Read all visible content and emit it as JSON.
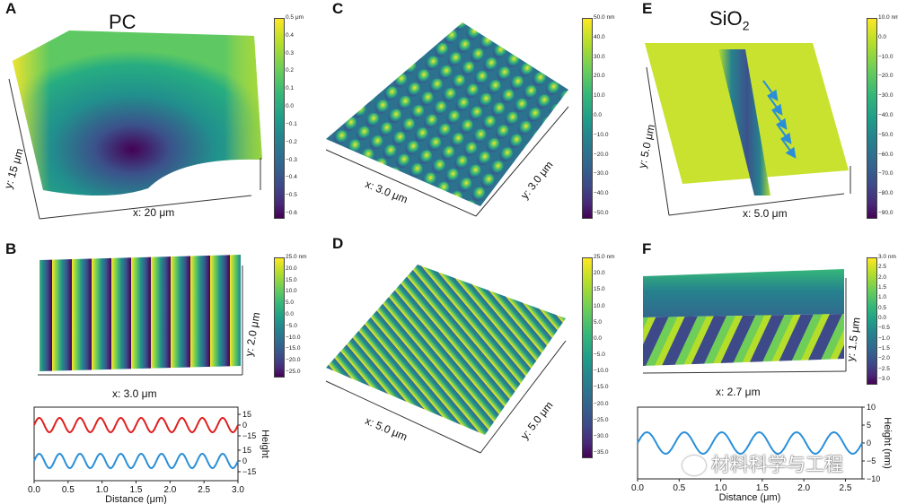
{
  "panels": {
    "A": {
      "letter": "A",
      "title": "PC",
      "x_label": "x: 20 μm",
      "y_label": "y: 15 μm",
      "cbar_ticks": [
        "0.5 μm",
        "0.4",
        "0.3",
        "0.2",
        "0.1",
        "0.0",
        "−0.1",
        "−0.2",
        "−0.3",
        "−0.4",
        "−0.5",
        "−0.6"
      ]
    },
    "B": {
      "letter": "B",
      "x_label": "x: 3.0 μm",
      "y_label": "y: 2.0 μm",
      "cbar_ticks": [
        "25.0 nm",
        "20.0",
        "15.0",
        "10.0",
        "5.0",
        "0.0",
        "−5.0",
        "−10.0",
        "−15.0",
        "−20.0",
        "−25.0"
      ]
    },
    "C": {
      "letter": "C",
      "x_label": "x: 3.0 μm",
      "y_label": "y: 3.0 μm",
      "cbar_ticks": [
        "50.0 nm",
        "40.0",
        "30.0",
        "20.0",
        "10.0",
        "0.0",
        "−10.0",
        "−20.0",
        "−30.0",
        "−40.0",
        "−50.0"
      ]
    },
    "D": {
      "letter": "D",
      "x_label": "x: 5.0 μm",
      "y_label": "y: 5.0 μm",
      "cbar_ticks": [
        "25.0 nm",
        "20.0",
        "15.0",
        "10.0",
        "5.0",
        "0.0",
        "−5.0",
        "−10.0",
        "−15.0",
        "−20.0",
        "−25.0",
        "−30.0",
        "−35.0"
      ]
    },
    "E": {
      "letter": "E",
      "title_main": "SiO",
      "title_sub": "2",
      "x_label": "x: 5.0 μm",
      "y_label": "y: 5.0 μm",
      "cbar_ticks": [
        "10.0 nm",
        "0.0",
        "−10.0",
        "−20.0",
        "−30.0",
        "−40.0",
        "−50.0",
        "−60.0",
        "−70.0",
        "−80.0",
        "−90.0"
      ]
    },
    "F": {
      "letter": "F",
      "x_label": "x: 2.7 μm",
      "y_label": "y: 1.5 μm",
      "cbar_ticks": [
        "3.0 nm",
        "2.5",
        "2.0",
        "1.5",
        "1.0",
        "0.5",
        "0.0",
        "−0.5",
        "−1.0",
        "−1.5",
        "−2.0",
        "−2.5",
        "−3.0"
      ]
    }
  },
  "chart_data": [
    {
      "type": "line",
      "panel": "B-profile",
      "x": [
        0,
        0.5,
        1.0,
        1.5,
        2.0,
        2.5,
        3.0
      ],
      "xlabel": "Distance (μm)",
      "ylabel": "Height",
      "xticks": [
        "0.0",
        "0.5",
        "1.0",
        "1.5",
        "2.0",
        "2.5",
        "3.0"
      ],
      "yticks_right": [
        "15",
        "0",
        "−15",
        "15",
        "0",
        "−15"
      ],
      "xlim": [
        0,
        3.0
      ],
      "series": [
        {
          "color": "#e02020",
          "amplitude": 12,
          "offset": 0,
          "period": 0.3
        },
        {
          "color": "#2a8fd8",
          "amplitude": 12,
          "offset": 0,
          "period": 0.3
        }
      ],
      "grid": false
    },
    {
      "type": "line",
      "panel": "F-profile",
      "xlabel": "Distance (μm)",
      "ylabel": "Height (nm)",
      "xticks": [
        "0.0",
        "0.5",
        "1.0",
        "1.5",
        "2.0",
        "2.5"
      ],
      "yticks_right": [
        "10",
        "5",
        "0",
        "−5",
        "−10"
      ],
      "xlim": [
        0,
        2.7
      ],
      "ylim": [
        -10,
        10
      ],
      "series": [
        {
          "color": "#2a8fd8",
          "amplitude": 3,
          "offset": 0,
          "period": 0.45
        }
      ],
      "grid": false
    }
  ],
  "watermark": "材料科学与工程"
}
